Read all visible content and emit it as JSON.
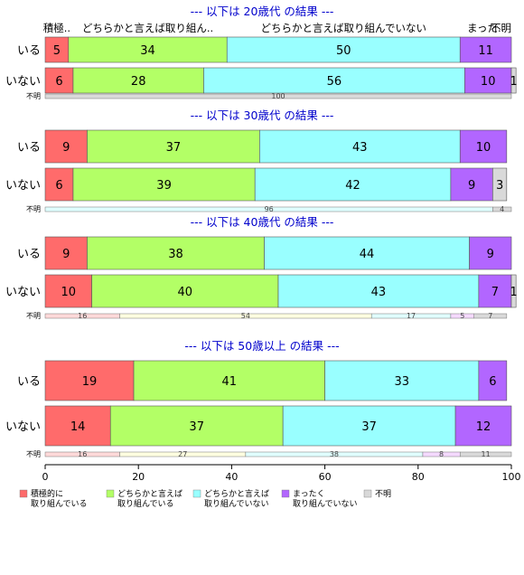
{
  "chart_data": {
    "type": "bar",
    "stacked": true,
    "orientation": "horizontal",
    "xlim": [
      0,
      100
    ],
    "xticks": [
      0,
      20,
      40,
      60,
      80,
      100
    ],
    "colors": [
      "#ff6b6b",
      "#b3ff66",
      "#99ffff",
      "#b266ff",
      "#d9d9d9"
    ],
    "segment_labels_top": [
      "積極..",
      "どちらかと言えば取り組ん..",
      "どちらかと言えば取り組んでいない",
      "まった..",
      "不明"
    ],
    "legend": [
      {
        "line1": "積極的に",
        "line2": "取り組んでいる"
      },
      {
        "line1": "どちらかと言えば",
        "line2": "取り組んでいる"
      },
      {
        "line1": "どちらかと言えば",
        "line2": "取り組んでいない"
      },
      {
        "line1": "まったく",
        "line2": "取り組んでいない"
      },
      {
        "line1": "不明",
        "line2": ""
      }
    ],
    "panels": [
      {
        "title": "--- 以下は 20歳代 の結果 ---",
        "rows": [
          {
            "label": "いる",
            "values": [
              5,
              34,
              50,
              11,
              0
            ]
          },
          {
            "label": "いない",
            "values": [
              6,
              28,
              56,
              10,
              1
            ]
          }
        ],
        "unknown": {
          "label": "不明",
          "values": [
            0,
            0,
            0,
            0,
            100
          ]
        }
      },
      {
        "title": "--- 以下は 30歳代 の結果 ---",
        "rows": [
          {
            "label": "いる",
            "values": [
              9,
              37,
              43,
              10,
              0
            ]
          },
          {
            "label": "いない",
            "values": [
              6,
              39,
              42,
              9,
              3
            ]
          }
        ],
        "unknown": {
          "label": "不明",
          "values": [
            0,
            0,
            96,
            0,
            4
          ]
        }
      },
      {
        "title": "--- 以下は 40歳代 の結果 ---",
        "rows": [
          {
            "label": "いる",
            "values": [
              9,
              38,
              44,
              9,
              0
            ]
          },
          {
            "label": "いない",
            "values": [
              10,
              40,
              43,
              7,
              1
            ]
          }
        ],
        "unknown": {
          "label": "不明",
          "values": [
            16,
            54,
            17,
            5,
            7
          ]
        }
      },
      {
        "title": "--- 以下は 50歳以上 の結果 ---",
        "rows": [
          {
            "label": "いる",
            "values": [
              19,
              41,
              33,
              6,
              0
            ]
          },
          {
            "label": "いない",
            "values": [
              14,
              37,
              37,
              12,
              0
            ]
          }
        ],
        "unknown": {
          "label": "不明",
          "values": [
            16,
            27,
            38,
            8,
            11
          ]
        }
      }
    ]
  }
}
